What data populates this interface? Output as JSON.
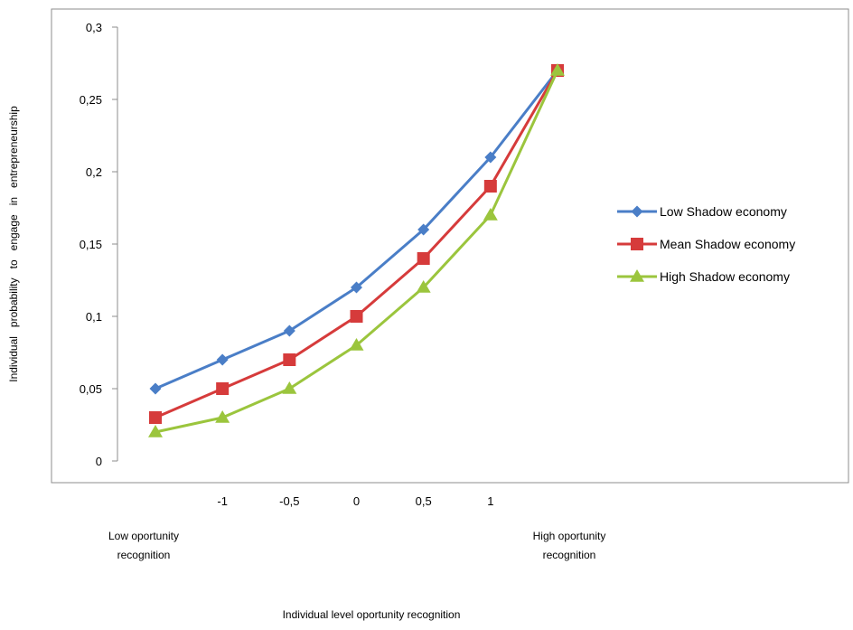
{
  "chart_data": {
    "type": "line",
    "title": "",
    "xlabel": "Individual level oportunity recognition",
    "ylabel": "Individual   probability   to   engage   in   entrepreneurship",
    "x_tick_labels": [
      "-1",
      "-0,5",
      "0",
      "0,5",
      "1"
    ],
    "x_tick_values": [
      -1,
      -0.5,
      0,
      0.5,
      1
    ],
    "x_points": [
      -1.5,
      -1,
      -0.5,
      0,
      0.5,
      1,
      1.5
    ],
    "xlim": [
      -1.5,
      1.5
    ],
    "y_tick_labels": [
      "0",
      "0,05",
      "0,1",
      "0,15",
      "0,2",
      "0,25",
      "0,3"
    ],
    "y_tick_values": [
      0,
      0.05,
      0.1,
      0.15,
      0.2,
      0.25,
      0.3
    ],
    "ylim": [
      0,
      0.3
    ],
    "annotations": {
      "low": [
        "Low oportunity",
        "recognition"
      ],
      "high": [
        "High oportunity",
        "recognition"
      ]
    },
    "grid": false,
    "legend_position": "right",
    "series": [
      {
        "name": "Low Shadow economy",
        "color": "#4A7EC7",
        "marker": "diamond",
        "values": [
          0.05,
          0.07,
          0.09,
          0.12,
          0.16,
          0.21,
          0.27
        ]
      },
      {
        "name": "Mean Shadow economy",
        "color": "#D63B3B",
        "marker": "square",
        "values": [
          0.03,
          0.05,
          0.07,
          0.1,
          0.14,
          0.19,
          0.27
        ]
      },
      {
        "name": "High Shadow economy",
        "color": "#9BC53D",
        "marker": "triangle",
        "values": [
          0.02,
          0.03,
          0.05,
          0.08,
          0.12,
          0.17,
          0.27
        ]
      }
    ]
  }
}
